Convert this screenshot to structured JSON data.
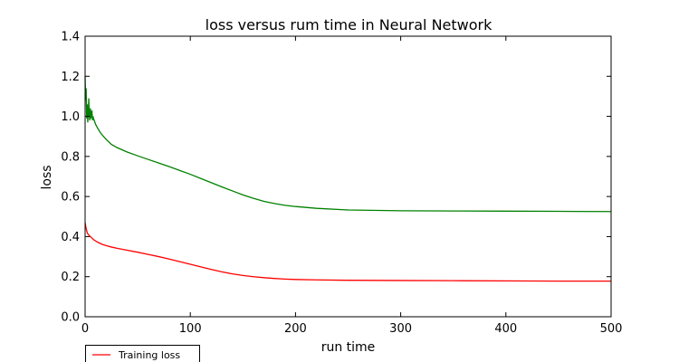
{
  "chart_data": {
    "type": "line",
    "title": "loss versus rum time in Neural Network",
    "xlabel": "run time",
    "ylabel": "loss",
    "xlim": [
      0,
      500
    ],
    "ylim": [
      0,
      1.4
    ],
    "xticks": [
      "0",
      "100",
      "200",
      "300",
      "400",
      "500"
    ],
    "yticks": [
      "0.0",
      "0.2",
      "0.4",
      "0.6",
      "0.8",
      "1.0",
      "1.2",
      "1.4"
    ],
    "grid": false,
    "legend_position": "below-left",
    "series": [
      {
        "name": "Training loss",
        "color": "#ff0000",
        "x": [
          0,
          1,
          2,
          3,
          5,
          8,
          12,
          16,
          20,
          25,
          30,
          40,
          50,
          60,
          70,
          80,
          90,
          100,
          110,
          120,
          130,
          140,
          150,
          160,
          170,
          180,
          190,
          200,
          220,
          250,
          300,
          350,
          400,
          450,
          500
        ],
        "y": [
          0.47,
          0.44,
          0.42,
          0.41,
          0.4,
          0.385,
          0.372,
          0.362,
          0.355,
          0.348,
          0.342,
          0.332,
          0.322,
          0.311,
          0.3,
          0.288,
          0.275,
          0.262,
          0.249,
          0.236,
          0.224,
          0.214,
          0.206,
          0.2,
          0.195,
          0.191,
          0.188,
          0.186,
          0.184,
          0.182,
          0.181,
          0.18,
          0.179,
          0.178,
          0.178
        ]
      },
      {
        "name": "",
        "color": "#008000",
        "x": [
          0,
          0.5,
          1,
          1.5,
          2,
          2.5,
          3,
          3.5,
          4,
          4.5,
          5,
          5.5,
          6,
          6.5,
          7,
          7.5,
          8,
          9,
          10,
          12,
          15,
          20,
          25,
          30,
          40,
          50,
          60,
          70,
          80,
          90,
          100,
          110,
          120,
          130,
          140,
          150,
          160,
          170,
          180,
          190,
          200,
          220,
          250,
          300,
          350,
          400,
          450,
          500
        ],
        "y": [
          1.2,
          1.08,
          1.14,
          0.99,
          1.06,
          0.97,
          1.02,
          1.09,
          1.0,
          0.98,
          1.04,
          0.99,
          1.01,
          1.03,
          0.98,
          1.0,
          0.99,
          0.975,
          0.96,
          0.94,
          0.915,
          0.885,
          0.86,
          0.845,
          0.822,
          0.803,
          0.785,
          0.767,
          0.749,
          0.73,
          0.711,
          0.69,
          0.669,
          0.648,
          0.628,
          0.608,
          0.591,
          0.576,
          0.565,
          0.556,
          0.55,
          0.541,
          0.533,
          0.529,
          0.528,
          0.527,
          0.526,
          0.525
        ]
      }
    ]
  }
}
